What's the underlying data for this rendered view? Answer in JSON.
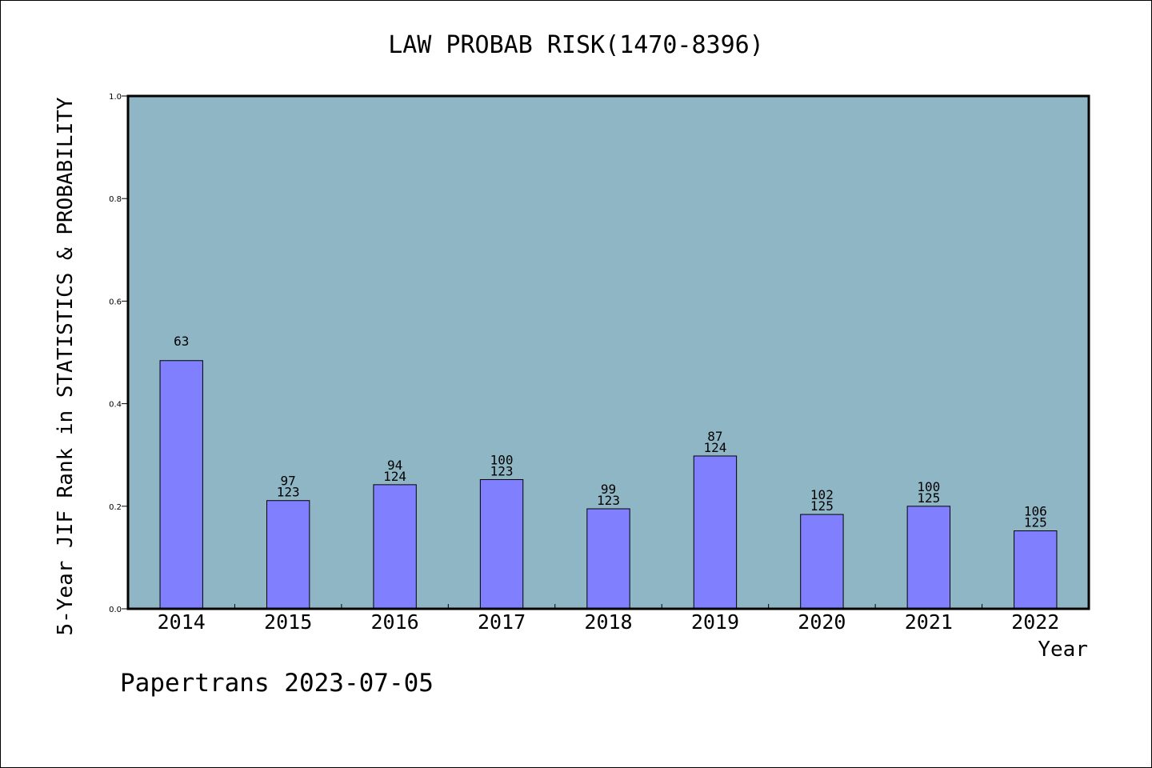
{
  "chart_data": {
    "type": "bar",
    "title": "LAW PROBAB RISK(1470-8396)",
    "xlabel": "Year",
    "ylabel": "5-Year JIF Rank in STATISTICS & PROBABILITY",
    "ylim": [
      0,
      1.0
    ],
    "yticks": [
      "0.0",
      "0.2",
      "0.4",
      "0.6",
      "0.8",
      "1.0"
    ],
    "grid": false,
    "legend": "none",
    "categories": [
      "2014",
      "2015",
      "2016",
      "2017",
      "2018",
      "2019",
      "2020",
      "2021",
      "2022"
    ],
    "values": [
      0.484,
      0.211,
      0.242,
      0.252,
      0.195,
      0.298,
      0.184,
      0.2,
      0.152
    ],
    "rank_labels": [
      "63",
      "97",
      "94",
      "100",
      "99",
      "87",
      "102",
      "100",
      "106"
    ],
    "total_labels": [
      "",
      "123",
      "124",
      "123",
      "123",
      "124",
      "125",
      "125",
      "125"
    ],
    "colors": {
      "plot_bg": "#8fb6c4",
      "bar": "#8080ff",
      "frame": "#000000"
    }
  },
  "footer": {
    "caption": "Papertrans 2023-07-05"
  }
}
